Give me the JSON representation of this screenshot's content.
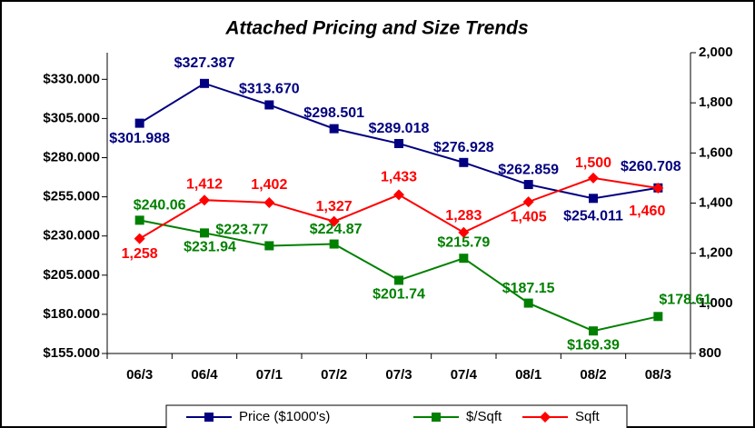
{
  "chart_data": {
    "type": "line",
    "title": "Attached Pricing and Size Trends",
    "categories": [
      "06/3",
      "06/4",
      "07/1",
      "07/2",
      "07/3",
      "07/4",
      "08/1",
      "08/2",
      "08/3"
    ],
    "series": [
      {
        "name": "Price ($1000's)",
        "color": "#000080",
        "marker": "square",
        "axis": "y",
        "values": [
          301.988,
          327.387,
          313.67,
          298.501,
          289.018,
          276.928,
          262.859,
          254.011,
          260.708
        ],
        "value_labels": [
          "$301.988",
          "$327.387",
          "$313.670",
          "$298.501",
          "$289.018",
          "$276.928",
          "$262.859",
          "$254.011",
          "$260.708"
        ]
      },
      {
        "name": "$/Sqft",
        "color": "#008000",
        "marker": "square",
        "axis": "y",
        "values": [
          240.06,
          231.94,
          223.77,
          224.87,
          201.74,
          215.79,
          187.15,
          169.39,
          178.61
        ],
        "value_labels": [
          "$240.06",
          "$231.94",
          "$223.77",
          "$224.87",
          "$201.74",
          "$215.79",
          "$187.15",
          "$169.39",
          "$178.61"
        ]
      },
      {
        "name": "Sqft",
        "color": "#ff0000",
        "marker": "diamond",
        "axis": "y2",
        "values": [
          1258,
          1412,
          1402,
          1327,
          1433,
          1283,
          1405,
          1500,
          1460
        ],
        "value_labels": [
          "1,258",
          "1,412",
          "1,402",
          "1,327",
          "1,433",
          "1,283",
          "1,405",
          "1,500",
          "1,460"
        ]
      }
    ],
    "ylim": [
      155,
      347
    ],
    "yticks": [
      {
        "value": 155,
        "label": "$155.000"
      },
      {
        "value": 180,
        "label": "$180.000"
      },
      {
        "value": 205,
        "label": "$205.000"
      },
      {
        "value": 230,
        "label": "$230.000"
      },
      {
        "value": 255,
        "label": "$255.000"
      },
      {
        "value": 280,
        "label": "$280.000"
      },
      {
        "value": 305,
        "label": "$305.000"
      },
      {
        "value": 330,
        "label": "$330.000"
      }
    ],
    "y2lim": [
      800,
      2000
    ],
    "y2ticks": [
      800,
      {
        "value": 1000,
        "label": "1,000"
      },
      {
        "value": 1200,
        "label": "1,200"
      },
      {
        "value": 1400,
        "label": "1,400"
      },
      {
        "value": 1600,
        "label": "1,600"
      },
      {
        "value": 1800,
        "label": "1,800"
      },
      {
        "value": 2000,
        "label": "2,000"
      }
    ],
    "grid": false,
    "legend_position": "bottom"
  }
}
